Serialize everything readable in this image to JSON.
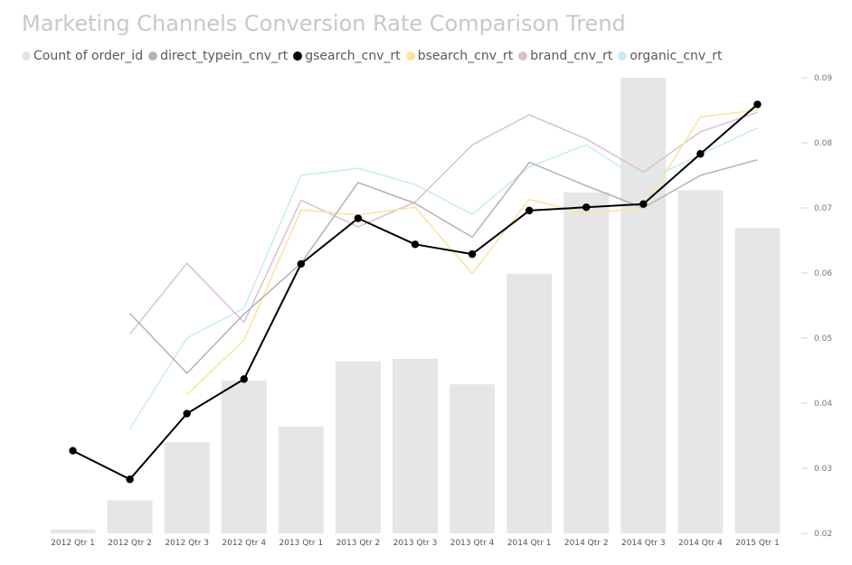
{
  "chart_data": {
    "type": "bar+line",
    "title": "Marketing Channels Conversion Rate Comparison Trend",
    "categories": [
      "2012 Qtr 1",
      "2012 Qtr 2",
      "2012 Qtr 3",
      "2012 Qtr 4",
      "2013 Qtr 1",
      "2013 Qtr 2",
      "2013 Qtr 3",
      "2013 Qtr 4",
      "2014 Qtr 1",
      "2014 Qtr 2",
      "2014 Qtr 3",
      "2014 Qtr 4",
      "2015 Qtr 1"
    ],
    "y2_ticks": [
      "0.02",
      "0.03",
      "0.04",
      "0.05",
      "0.06",
      "0.07",
      "0.08",
      "0.09"
    ],
    "y2lim": [
      0.02,
      0.09
    ],
    "bars": {
      "name": "Count of order_id",
      "color": "#e6e6e6",
      "values": [
        60,
        508,
        1400,
        2350,
        1640,
        2640,
        2680,
        2290,
        3990,
        5240,
        7000,
        5270,
        4690
      ],
      "max": 7000
    },
    "series": [
      {
        "name": "direct_typein_cnv_rt",
        "color": "#b3b3b3",
        "width": 1.5,
        "markers": false,
        "values": [
          null,
          0.0538,
          0.0446,
          0.0537,
          0.0615,
          0.0739,
          0.0707,
          0.0655,
          0.077,
          0.0734,
          0.07,
          0.075,
          0.0774
        ]
      },
      {
        "name": "gsearch_cnv_rt",
        "color": "#000000",
        "width": 2,
        "markers": true,
        "values": [
          0.0327,
          0.0283,
          0.0384,
          0.0437,
          0.0614,
          0.0684,
          0.0644,
          0.0629,
          0.0696,
          0.0701,
          0.0706,
          0.0783,
          0.0859
        ]
      },
      {
        "name": "bsearch_cnv_rt",
        "color": "#f9e59a",
        "width": 1.5,
        "markers": false,
        "values": [
          null,
          null,
          0.0413,
          0.0497,
          0.0697,
          0.0689,
          0.0701,
          0.0599,
          0.0713,
          0.0691,
          0.07,
          0.084,
          0.085
        ]
      },
      {
        "name": "brand_cnv_rt",
        "color": "#dbbfd3",
        "width": 1.5,
        "markers": false,
        "values": [
          null,
          0.0506,
          0.0615,
          0.0524,
          0.0712,
          0.0671,
          0.0709,
          0.0797,
          0.0843,
          0.0806,
          0.0755,
          0.0817,
          0.0847
        ]
      },
      {
        "name": "organic_cnv_rt",
        "color": "#c9ebf4",
        "width": 1.5,
        "markers": false,
        "values": [
          null,
          0.0361,
          0.05,
          0.0546,
          0.075,
          0.0761,
          0.0736,
          0.069,
          0.0763,
          0.0797,
          0.074,
          0.0782,
          0.0823
        ]
      }
    ],
    "legend_placement": "top-left",
    "grid": false
  }
}
